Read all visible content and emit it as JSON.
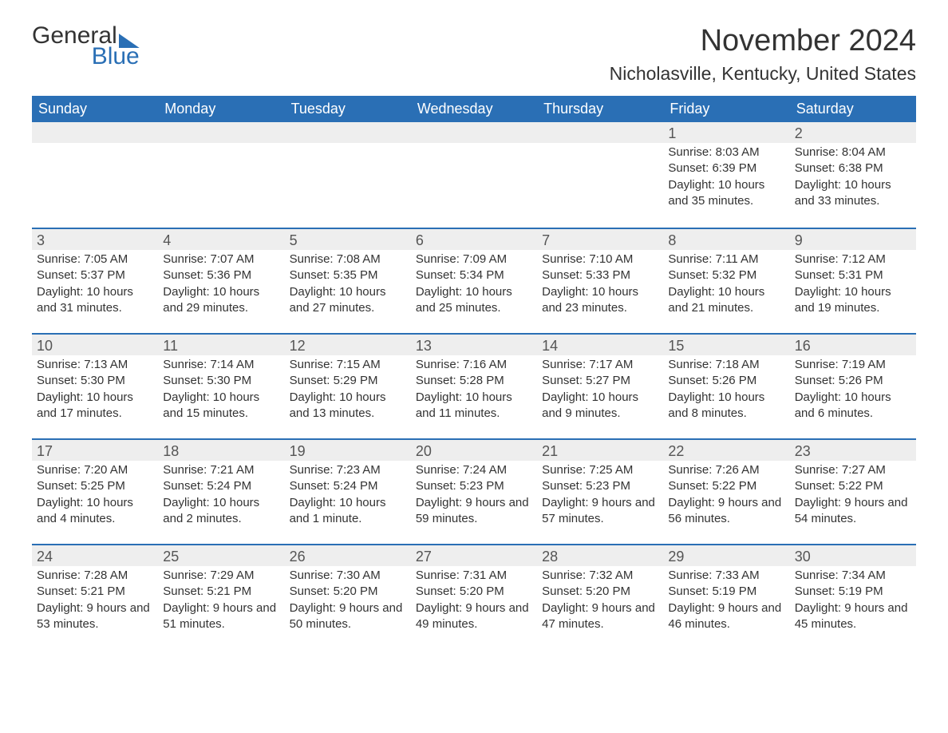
{
  "logo": {
    "word1": "General",
    "word2": "Blue"
  },
  "title": "November 2024",
  "location": "Nicholasville, Kentucky, United States",
  "colors": {
    "brand": "#2a6fb5",
    "headerBg": "#2a6fb5",
    "headerText": "#ffffff",
    "dayNumBg": "#eeeeee",
    "text": "#333333"
  },
  "dayNames": [
    "Sunday",
    "Monday",
    "Tuesday",
    "Wednesday",
    "Thursday",
    "Friday",
    "Saturday"
  ],
  "weeks": [
    [
      {
        "n": "",
        "sunrise": "",
        "sunset": "",
        "daylight": ""
      },
      {
        "n": "",
        "sunrise": "",
        "sunset": "",
        "daylight": ""
      },
      {
        "n": "",
        "sunrise": "",
        "sunset": "",
        "daylight": ""
      },
      {
        "n": "",
        "sunrise": "",
        "sunset": "",
        "daylight": ""
      },
      {
        "n": "",
        "sunrise": "",
        "sunset": "",
        "daylight": ""
      },
      {
        "n": "1",
        "sunrise": "Sunrise: 8:03 AM",
        "sunset": "Sunset: 6:39 PM",
        "daylight": "Daylight: 10 hours and 35 minutes."
      },
      {
        "n": "2",
        "sunrise": "Sunrise: 8:04 AM",
        "sunset": "Sunset: 6:38 PM",
        "daylight": "Daylight: 10 hours and 33 minutes."
      }
    ],
    [
      {
        "n": "3",
        "sunrise": "Sunrise: 7:05 AM",
        "sunset": "Sunset: 5:37 PM",
        "daylight": "Daylight: 10 hours and 31 minutes."
      },
      {
        "n": "4",
        "sunrise": "Sunrise: 7:07 AM",
        "sunset": "Sunset: 5:36 PM",
        "daylight": "Daylight: 10 hours and 29 minutes."
      },
      {
        "n": "5",
        "sunrise": "Sunrise: 7:08 AM",
        "sunset": "Sunset: 5:35 PM",
        "daylight": "Daylight: 10 hours and 27 minutes."
      },
      {
        "n": "6",
        "sunrise": "Sunrise: 7:09 AM",
        "sunset": "Sunset: 5:34 PM",
        "daylight": "Daylight: 10 hours and 25 minutes."
      },
      {
        "n": "7",
        "sunrise": "Sunrise: 7:10 AM",
        "sunset": "Sunset: 5:33 PM",
        "daylight": "Daylight: 10 hours and 23 minutes."
      },
      {
        "n": "8",
        "sunrise": "Sunrise: 7:11 AM",
        "sunset": "Sunset: 5:32 PM",
        "daylight": "Daylight: 10 hours and 21 minutes."
      },
      {
        "n": "9",
        "sunrise": "Sunrise: 7:12 AM",
        "sunset": "Sunset: 5:31 PM",
        "daylight": "Daylight: 10 hours and 19 minutes."
      }
    ],
    [
      {
        "n": "10",
        "sunrise": "Sunrise: 7:13 AM",
        "sunset": "Sunset: 5:30 PM",
        "daylight": "Daylight: 10 hours and 17 minutes."
      },
      {
        "n": "11",
        "sunrise": "Sunrise: 7:14 AM",
        "sunset": "Sunset: 5:30 PM",
        "daylight": "Daylight: 10 hours and 15 minutes."
      },
      {
        "n": "12",
        "sunrise": "Sunrise: 7:15 AM",
        "sunset": "Sunset: 5:29 PM",
        "daylight": "Daylight: 10 hours and 13 minutes."
      },
      {
        "n": "13",
        "sunrise": "Sunrise: 7:16 AM",
        "sunset": "Sunset: 5:28 PM",
        "daylight": "Daylight: 10 hours and 11 minutes."
      },
      {
        "n": "14",
        "sunrise": "Sunrise: 7:17 AM",
        "sunset": "Sunset: 5:27 PM",
        "daylight": "Daylight: 10 hours and 9 minutes."
      },
      {
        "n": "15",
        "sunrise": "Sunrise: 7:18 AM",
        "sunset": "Sunset: 5:26 PM",
        "daylight": "Daylight: 10 hours and 8 minutes."
      },
      {
        "n": "16",
        "sunrise": "Sunrise: 7:19 AM",
        "sunset": "Sunset: 5:26 PM",
        "daylight": "Daylight: 10 hours and 6 minutes."
      }
    ],
    [
      {
        "n": "17",
        "sunrise": "Sunrise: 7:20 AM",
        "sunset": "Sunset: 5:25 PM",
        "daylight": "Daylight: 10 hours and 4 minutes."
      },
      {
        "n": "18",
        "sunrise": "Sunrise: 7:21 AM",
        "sunset": "Sunset: 5:24 PM",
        "daylight": "Daylight: 10 hours and 2 minutes."
      },
      {
        "n": "19",
        "sunrise": "Sunrise: 7:23 AM",
        "sunset": "Sunset: 5:24 PM",
        "daylight": "Daylight: 10 hours and 1 minute."
      },
      {
        "n": "20",
        "sunrise": "Sunrise: 7:24 AM",
        "sunset": "Sunset: 5:23 PM",
        "daylight": "Daylight: 9 hours and 59 minutes."
      },
      {
        "n": "21",
        "sunrise": "Sunrise: 7:25 AM",
        "sunset": "Sunset: 5:23 PM",
        "daylight": "Daylight: 9 hours and 57 minutes."
      },
      {
        "n": "22",
        "sunrise": "Sunrise: 7:26 AM",
        "sunset": "Sunset: 5:22 PM",
        "daylight": "Daylight: 9 hours and 56 minutes."
      },
      {
        "n": "23",
        "sunrise": "Sunrise: 7:27 AM",
        "sunset": "Sunset: 5:22 PM",
        "daylight": "Daylight: 9 hours and 54 minutes."
      }
    ],
    [
      {
        "n": "24",
        "sunrise": "Sunrise: 7:28 AM",
        "sunset": "Sunset: 5:21 PM",
        "daylight": "Daylight: 9 hours and 53 minutes."
      },
      {
        "n": "25",
        "sunrise": "Sunrise: 7:29 AM",
        "sunset": "Sunset: 5:21 PM",
        "daylight": "Daylight: 9 hours and 51 minutes."
      },
      {
        "n": "26",
        "sunrise": "Sunrise: 7:30 AM",
        "sunset": "Sunset: 5:20 PM",
        "daylight": "Daylight: 9 hours and 50 minutes."
      },
      {
        "n": "27",
        "sunrise": "Sunrise: 7:31 AM",
        "sunset": "Sunset: 5:20 PM",
        "daylight": "Daylight: 9 hours and 49 minutes."
      },
      {
        "n": "28",
        "sunrise": "Sunrise: 7:32 AM",
        "sunset": "Sunset: 5:20 PM",
        "daylight": "Daylight: 9 hours and 47 minutes."
      },
      {
        "n": "29",
        "sunrise": "Sunrise: 7:33 AM",
        "sunset": "Sunset: 5:19 PM",
        "daylight": "Daylight: 9 hours and 46 minutes."
      },
      {
        "n": "30",
        "sunrise": "Sunrise: 7:34 AM",
        "sunset": "Sunset: 5:19 PM",
        "daylight": "Daylight: 9 hours and 45 minutes."
      }
    ]
  ]
}
